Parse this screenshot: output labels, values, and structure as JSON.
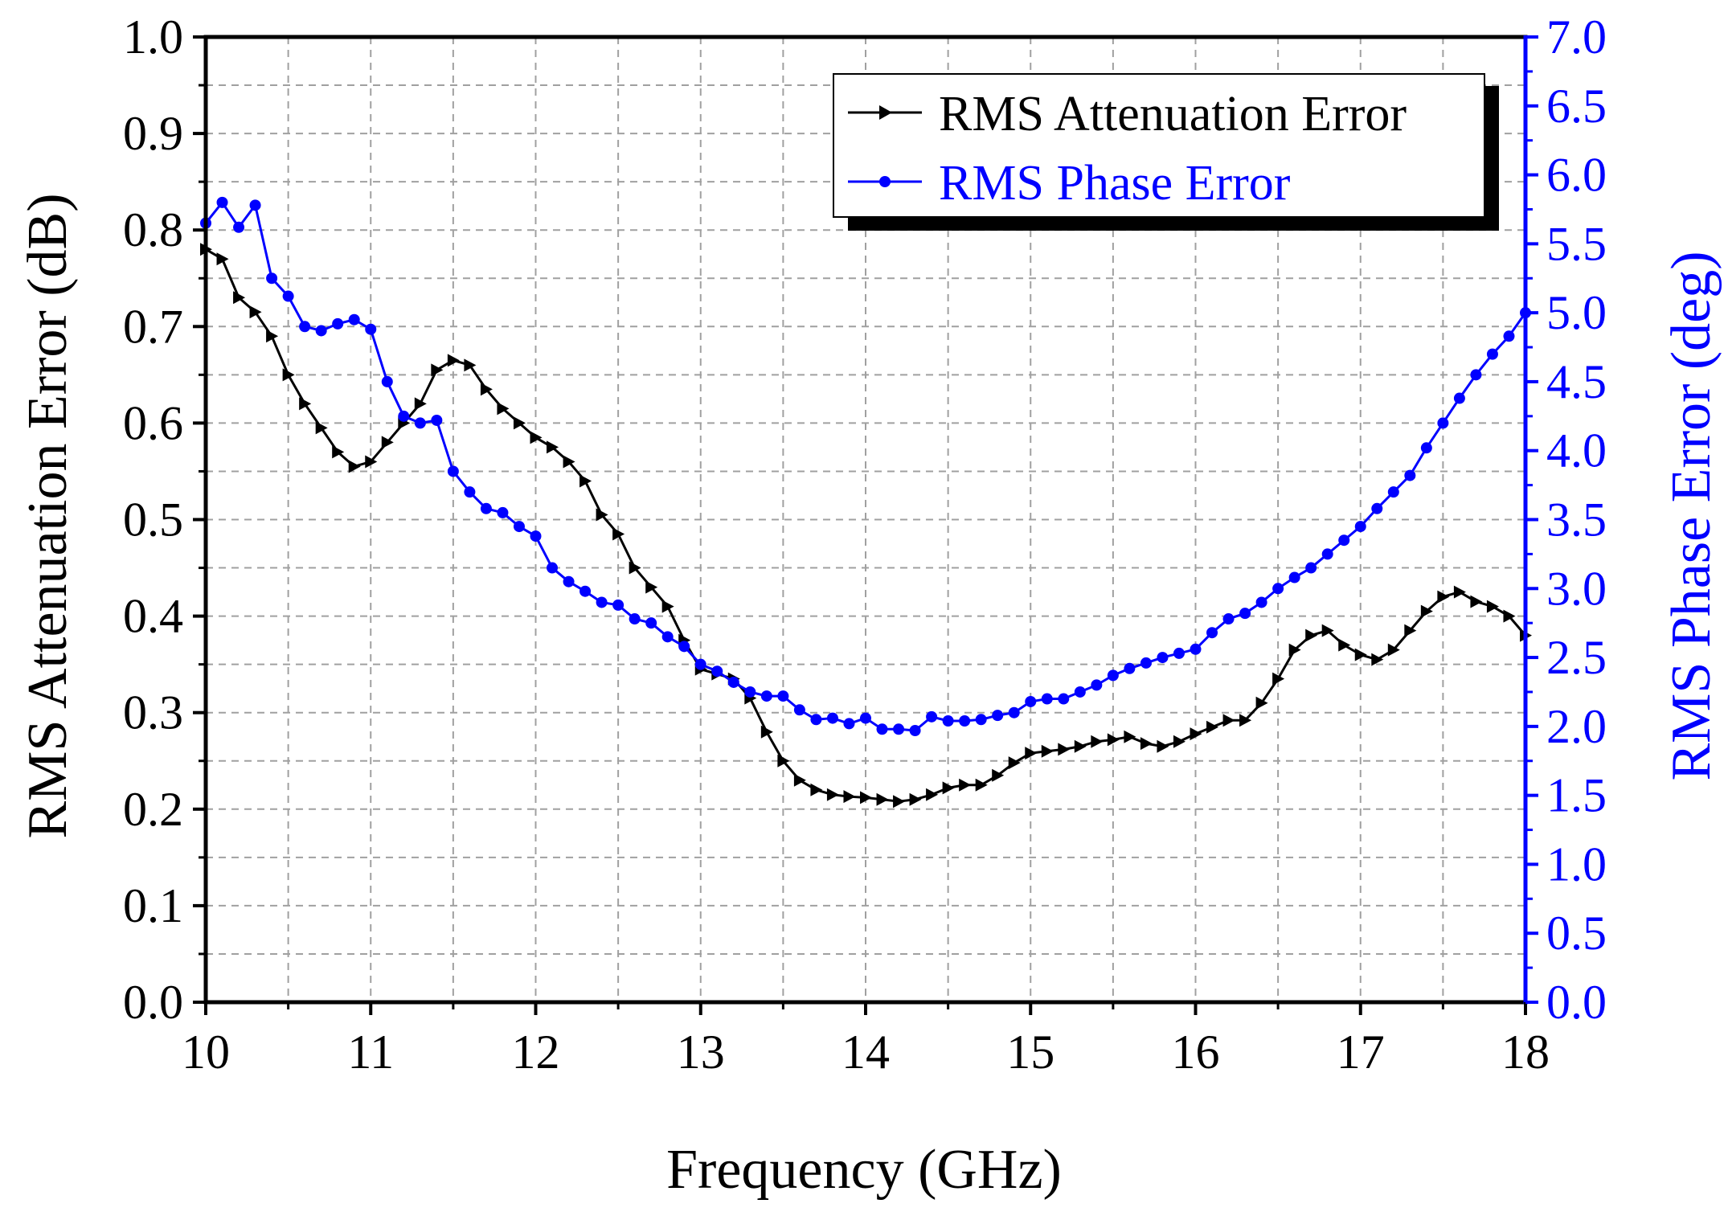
{
  "chart_data": {
    "type": "line",
    "xlabel": "Frequency (GHz)",
    "ylabel_left": "RMS Attenuation Error (dB)",
    "ylabel_right": "RMS Phase Error (deg)",
    "xlim": [
      10,
      18
    ],
    "ylim_left": [
      0,
      1.0
    ],
    "ylim_right": [
      0,
      7.0
    ],
    "x_ticks": [
      "10",
      "11",
      "12",
      "13",
      "14",
      "15",
      "16",
      "17",
      "18"
    ],
    "y_left_ticks": [
      "0.0",
      "0.1",
      "0.2",
      "0.3",
      "0.4",
      "0.5",
      "0.6",
      "0.7",
      "0.8",
      "0.9",
      "1.0"
    ],
    "y_right_ticks": [
      "0.0",
      "0.5",
      "1.0",
      "1.5",
      "2.0",
      "2.5",
      "3.0",
      "3.5",
      "4.0",
      "4.5",
      "5.0",
      "5.5",
      "6.0",
      "6.5",
      "7.0"
    ],
    "grid": true,
    "legend_position": "top-right",
    "colors": {
      "attenuation": "#000000",
      "phase": "#0000ff",
      "grid": "#a0a0a0"
    },
    "x": [
      10.0,
      10.1,
      10.2,
      10.3,
      10.4,
      10.5,
      10.6,
      10.7,
      10.8,
      10.9,
      11.0,
      11.1,
      11.2,
      11.3,
      11.4,
      11.5,
      11.6,
      11.7,
      11.8,
      11.9,
      12.0,
      12.1,
      12.2,
      12.3,
      12.4,
      12.5,
      12.6,
      12.7,
      12.8,
      12.9,
      13.0,
      13.1,
      13.2,
      13.3,
      13.4,
      13.5,
      13.6,
      13.7,
      13.8,
      13.9,
      14.0,
      14.1,
      14.2,
      14.3,
      14.4,
      14.5,
      14.6,
      14.7,
      14.8,
      14.9,
      15.0,
      15.1,
      15.2,
      15.3,
      15.4,
      15.5,
      15.6,
      15.7,
      15.8,
      15.9,
      16.0,
      16.1,
      16.2,
      16.3,
      16.4,
      16.5,
      16.6,
      16.7,
      16.8,
      16.9,
      17.0,
      17.1,
      17.2,
      17.3,
      17.4,
      17.5,
      17.6,
      17.7,
      17.8,
      17.9,
      18.0
    ],
    "series": [
      {
        "name": "RMS Attenuation Error",
        "axis": "left",
        "marker": "triangle-right",
        "values": [
          0.78,
          0.77,
          0.73,
          0.715,
          0.69,
          0.65,
          0.62,
          0.595,
          0.57,
          0.555,
          0.56,
          0.58,
          0.6,
          0.62,
          0.655,
          0.665,
          0.66,
          0.635,
          0.615,
          0.6,
          0.585,
          0.575,
          0.56,
          0.54,
          0.505,
          0.485,
          0.45,
          0.43,
          0.41,
          0.375,
          0.345,
          0.34,
          0.335,
          0.315,
          0.28,
          0.25,
          0.23,
          0.22,
          0.215,
          0.213,
          0.212,
          0.21,
          0.208,
          0.21,
          0.215,
          0.222,
          0.225,
          0.225,
          0.235,
          0.248,
          0.258,
          0.26,
          0.262,
          0.265,
          0.27,
          0.272,
          0.275,
          0.268,
          0.265,
          0.27,
          0.278,
          0.285,
          0.292,
          0.292,
          0.31,
          0.335,
          0.365,
          0.38,
          0.385,
          0.37,
          0.36,
          0.355,
          0.365,
          0.385,
          0.405,
          0.42,
          0.425,
          0.415,
          0.41,
          0.4,
          0.38
        ]
      },
      {
        "name": "RMS Phase Error",
        "axis": "right",
        "marker": "circle",
        "values": [
          5.65,
          5.8,
          5.62,
          5.78,
          5.25,
          5.12,
          4.9,
          4.87,
          4.92,
          4.95,
          4.88,
          4.5,
          4.25,
          4.2,
          4.22,
          3.85,
          3.7,
          3.58,
          3.55,
          3.45,
          3.38,
          3.15,
          3.05,
          2.98,
          2.9,
          2.88,
          2.78,
          2.75,
          2.65,
          2.58,
          2.45,
          2.4,
          2.32,
          2.25,
          2.22,
          2.22,
          2.12,
          2.05,
          2.06,
          2.02,
          2.06,
          1.98,
          1.98,
          1.97,
          2.07,
          2.04,
          2.04,
          2.05,
          2.08,
          2.1,
          2.18,
          2.2,
          2.2,
          2.25,
          2.3,
          2.37,
          2.42,
          2.46,
          2.5,
          2.53,
          2.56,
          2.68,
          2.78,
          2.82,
          2.9,
          3.0,
          3.08,
          3.15,
          3.25,
          3.35,
          3.45,
          3.58,
          3.7,
          3.82,
          4.02,
          4.2,
          4.38,
          4.55,
          4.7,
          4.83,
          5.0
        ]
      }
    ]
  }
}
